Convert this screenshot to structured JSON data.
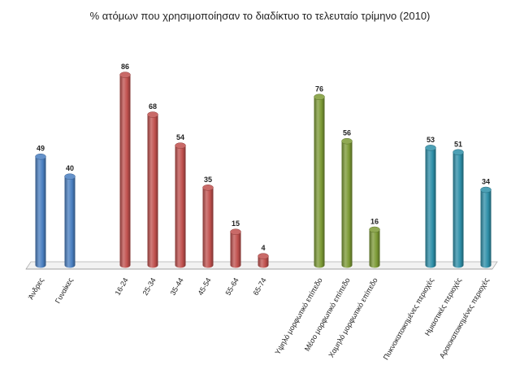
{
  "chart_data": {
    "type": "bar",
    "style": "3d-cylinder",
    "title": "% ατόμων που χρησιμοποίησαν το διαδίκτυο το τελευταίο τρίμηνο (2010)",
    "xlabel": "",
    "ylabel": "",
    "ylim": [
      0,
      100
    ],
    "grid": false,
    "legend": "none",
    "categories": [
      "Άνδρες",
      "Γυναίκες",
      "16-24",
      "25-34",
      "35-44",
      "45-54",
      "55-64",
      "65-74",
      "Υψηλό μορφωτικό επίπεδο",
      "Μέσο μορφωτικό επίπεδο",
      "Χαμηλό μορφωτικό επίπεδο",
      "Πυκνοκατοικημένες περιοχές",
      "Ημιαστικές περιοχές",
      "Αραιοκατοικημένες περιοχές"
    ],
    "values": [
      49,
      40,
      86,
      68,
      54,
      35,
      15,
      4,
      76,
      56,
      16,
      53,
      51,
      34
    ],
    "groups": [
      {
        "categories": [
          "Άνδρες",
          "Γυναίκες"
        ],
        "color": "#4a7fc1"
      },
      {
        "categories": [
          "16-24",
          "25-34",
          "35-44",
          "45-54",
          "55-64",
          "65-74"
        ],
        "color": "#c0504d"
      },
      {
        "categories": [
          "Υψηλό μορφωτικό επίπεδο",
          "Μέσο μορφωτικό επίπεδο",
          "Χαμηλό μορφωτικό επίπεδο"
        ],
        "color": "#7c9a35"
      },
      {
        "categories": [
          "Πυκνοκατοικημένες περιοχές",
          "Ημιαστικές περιοχές",
          "Αραιοκατοικημένες περιοχές"
        ],
        "color": "#2e8fa8"
      }
    ],
    "value_labels": [
      "49",
      "40",
      "86",
      "68",
      "54",
      "35",
      "15",
      "4",
      "76",
      "56",
      "16",
      "53",
      "51",
      "34"
    ]
  }
}
